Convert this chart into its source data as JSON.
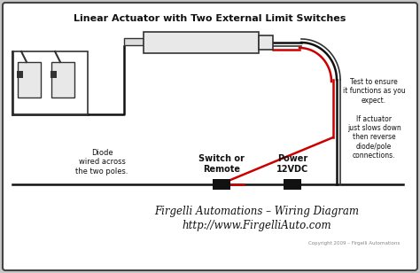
{
  "title": "Linear Actuator with Two External Limit Switches",
  "bg_outer": "#c8c8c8",
  "bg_inner": "#ffffff",
  "border_color": "#444444",
  "wire_black": "#111111",
  "wire_red": "#cc0000",
  "component_fill": "#e8e8e8",
  "component_stroke": "#333333",
  "text_color": "#111111",
  "footer_line1": "Firgelli Automations – Wiring Diagram",
  "footer_line2": "http://www.FirgelliAuto.com",
  "footer_copy": "Copyright 2009 – Firgelli Automations",
  "label_diode": "Diode\nwired across\nthe two poles.",
  "label_switch": "Switch or\nRemote",
  "label_power": "Power\n12VDC",
  "label_test": "Test to ensure\nit functions as you\nexpect.\n\nIf actuator\njust slows down\nthen reverse\ndiode/pole\nconnections."
}
